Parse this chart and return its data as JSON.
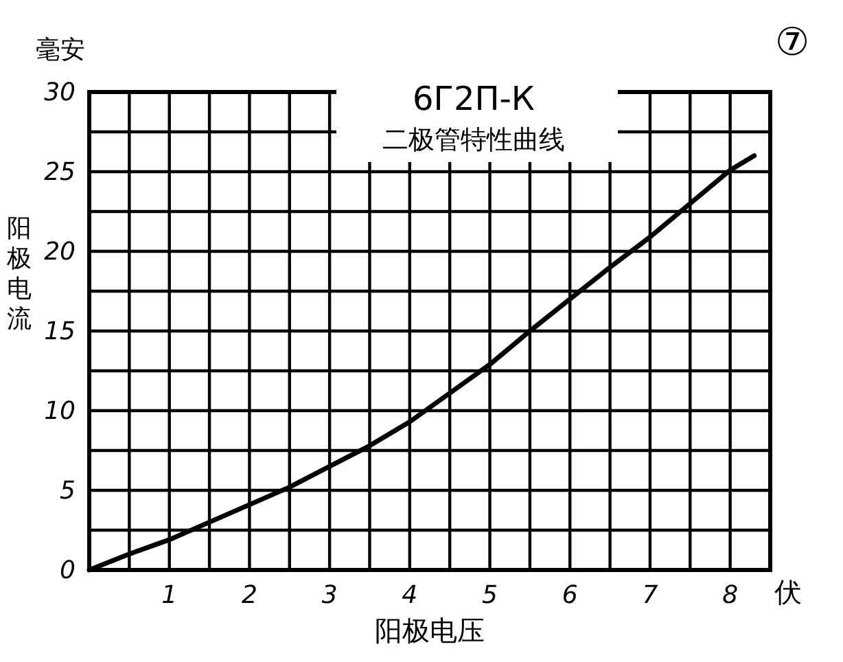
{
  "chart_data": {
    "type": "line",
    "title": "6Г2П-К",
    "subtitle": "二极管特性曲线",
    "xlabel": "阳极电压",
    "ylabel": "阳极电流",
    "annotations": [
      "毫安",
      "伏",
      "⑦"
    ],
    "x": [
      0,
      0.5,
      1,
      1.5,
      2,
      2.5,
      3,
      3.5,
      4,
      4.5,
      5,
      5.5,
      6,
      6.5,
      7,
      7.5,
      8,
      8.3
    ],
    "series": [
      {
        "color": "#000000",
        "values": [
          0,
          1,
          1.9,
          3,
          4.1,
          5.2,
          6.5,
          7.8,
          9.3,
          11.1,
          12.9,
          15,
          17,
          19,
          20.9,
          23,
          25.1,
          26
        ]
      }
    ],
    "xlim": [
      0,
      8.5
    ],
    "xticks": [
      {
        "value": 0,
        "label": null
      },
      {
        "value": 0.5,
        "label": null
      },
      1,
      {
        "value": 1.5,
        "label": null
      },
      2,
      {
        "value": 2.5,
        "label": null
      },
      3,
      {
        "value": 3.5,
        "label": null
      },
      4,
      {
        "value": 4.5,
        "label": null
      },
      5,
      {
        "value": 5.5,
        "label": null
      },
      6,
      {
        "value": 6.5,
        "label": null
      },
      7,
      {
        "value": 7.5,
        "label": null
      },
      8,
      {
        "value": 8.5,
        "label": null
      }
    ],
    "ylim": [
      0,
      30
    ],
    "yticks": [
      0,
      {
        "value": 2.5,
        "label": null
      },
      5,
      {
        "value": 7.5,
        "label": null
      },
      10,
      {
        "value": 12.5,
        "label": null
      },
      15,
      {
        "value": 17.5,
        "label": null
      },
      20,
      {
        "value": 22.5,
        "label": null
      },
      25,
      {
        "value": 27.5,
        "label": null
      },
      30
    ],
    "grid": true,
    "marker": "none",
    "line_style": "solid"
  }
}
